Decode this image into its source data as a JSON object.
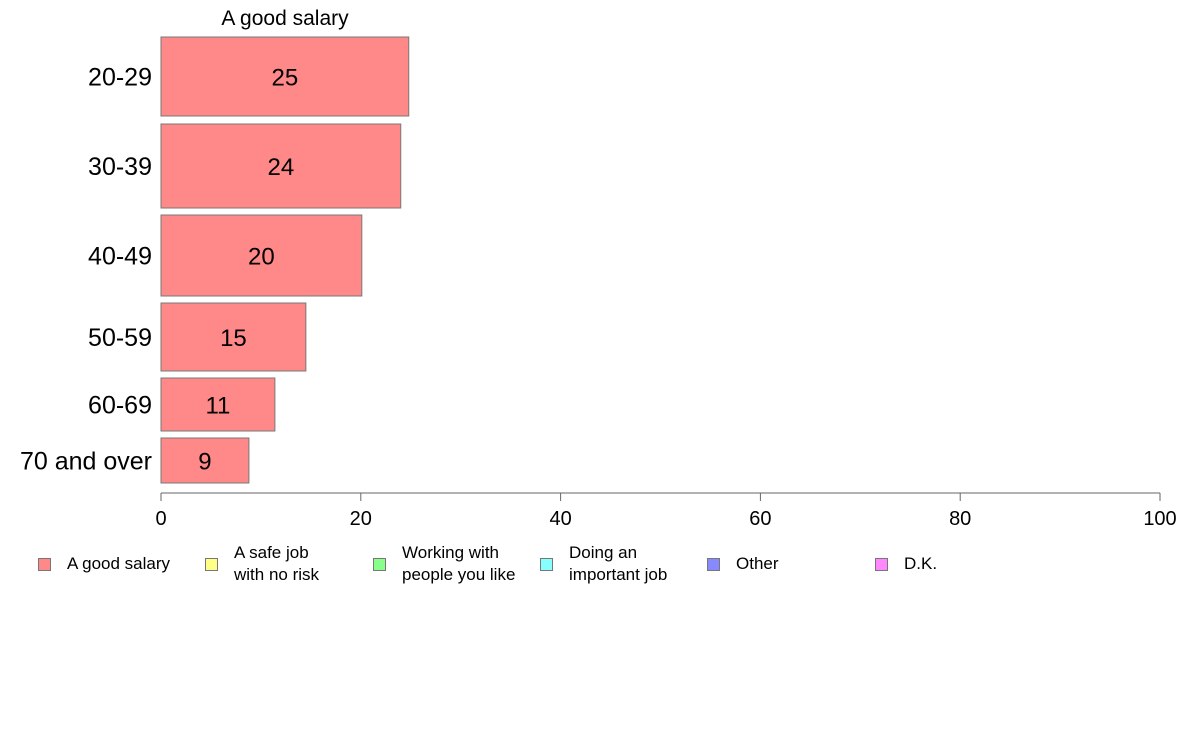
{
  "chart_data": {
    "type": "bar",
    "orientation": "horizontal",
    "title": "A good salary",
    "categories": [
      "20-29",
      "30-39",
      "40-49",
      "50-59",
      "60-69",
      "70 and over"
    ],
    "series": [
      {
        "name": "A good salary",
        "color": "#ff8888",
        "values": [
          24.8,
          24.0,
          20.1,
          14.5,
          11.4,
          8.8
        ],
        "labels": [
          "25",
          "24",
          "20",
          "15",
          "11",
          "9"
        ]
      }
    ],
    "xlim": [
      0,
      100
    ],
    "xticks": [
      "0",
      "20",
      "40",
      "60",
      "80",
      "100"
    ],
    "grid": false,
    "legend": {
      "placement": "bottom",
      "items": [
        {
          "label": "A good salary",
          "color": "#ff8888"
        },
        {
          "label": "A safe job\nwith no risk",
          "color": "#ffff88"
        },
        {
          "label": "Working with\npeople you like",
          "color": "#88ff88"
        },
        {
          "label": "Doing an\nimportant job",
          "color": "#88ffff"
        },
        {
          "label": "Other",
          "color": "#8888ff"
        },
        {
          "label": "D.K.",
          "color": "#ff88ff"
        }
      ]
    }
  }
}
